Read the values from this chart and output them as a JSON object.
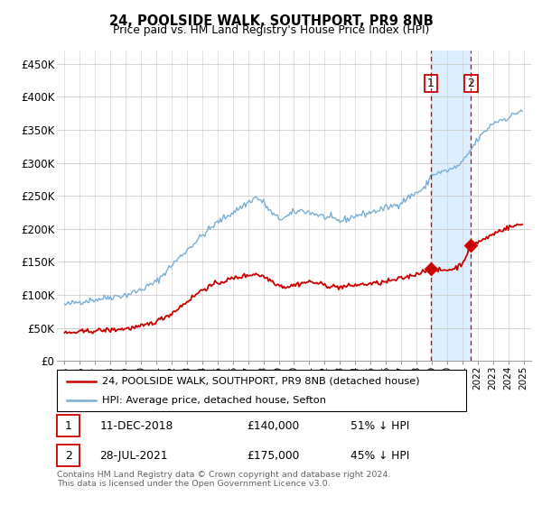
{
  "title": "24, POOLSIDE WALK, SOUTHPORT, PR9 8NB",
  "subtitle": "Price paid vs. HM Land Registry's House Price Index (HPI)",
  "footnote": "Contains HM Land Registry data © Crown copyright and database right 2024.\nThis data is licensed under the Open Government Licence v3.0.",
  "legend_entries": [
    "24, POOLSIDE WALK, SOUTHPORT, PR9 8NB (detached house)",
    "HPI: Average price, detached house, Sefton"
  ],
  "sales": [
    {
      "label": "1",
      "date": "11-DEC-2018",
      "price": 140000,
      "pct": "51% ↓ HPI"
    },
    {
      "label": "2",
      "date": "28-JUL-2021",
      "price": 175000,
      "pct": "45% ↓ HPI"
    }
  ],
  "sale1_x": 2018.94,
  "sale2_x": 2021.57,
  "sale1_y": 140000,
  "sale2_y": 175000,
  "hpi_color": "#7bafd4",
  "price_color": "#cc0000",
  "vline_color": "#cc0000",
  "highlight_color": "#ddeeff",
  "ylim": [
    0,
    470000
  ],
  "yticks": [
    0,
    50000,
    100000,
    150000,
    200000,
    250000,
    300000,
    350000,
    400000,
    450000
  ],
  "ytick_labels": [
    "£0",
    "£50K",
    "£100K",
    "£150K",
    "£200K",
    "£250K",
    "£300K",
    "£350K",
    "£400K",
    "£450K"
  ],
  "xlim_start": 1994.5,
  "xlim_end": 2025.5,
  "hpi_keypoints": [
    [
      1995.0,
      85000
    ],
    [
      1996.0,
      90000
    ],
    [
      1997.0,
      93000
    ],
    [
      1998.0,
      97000
    ],
    [
      1999.0,
      100000
    ],
    [
      2000.0,
      108000
    ],
    [
      2001.0,
      120000
    ],
    [
      2002.0,
      145000
    ],
    [
      2003.0,
      168000
    ],
    [
      2004.0,
      190000
    ],
    [
      2005.0,
      210000
    ],
    [
      2006.0,
      225000
    ],
    [
      2007.0,
      240000
    ],
    [
      2007.5,
      248000
    ],
    [
      2008.0,
      240000
    ],
    [
      2008.5,
      225000
    ],
    [
      2009.0,
      215000
    ],
    [
      2009.5,
      218000
    ],
    [
      2010.0,
      225000
    ],
    [
      2010.5,
      228000
    ],
    [
      2011.0,
      225000
    ],
    [
      2011.5,
      222000
    ],
    [
      2012.0,
      218000
    ],
    [
      2012.5,
      215000
    ],
    [
      2013.0,
      212000
    ],
    [
      2013.5,
      215000
    ],
    [
      2014.0,
      220000
    ],
    [
      2014.5,
      222000
    ],
    [
      2015.0,
      225000
    ],
    [
      2015.5,
      228000
    ],
    [
      2016.0,
      232000
    ],
    [
      2016.5,
      235000
    ],
    [
      2017.0,
      240000
    ],
    [
      2017.5,
      248000
    ],
    [
      2018.0,
      255000
    ],
    [
      2018.5,
      260000
    ],
    [
      2018.94,
      280000
    ],
    [
      2019.0,
      282000
    ],
    [
      2019.5,
      285000
    ],
    [
      2020.0,
      288000
    ],
    [
      2020.5,
      292000
    ],
    [
      2021.0,
      300000
    ],
    [
      2021.57,
      320000
    ],
    [
      2022.0,
      335000
    ],
    [
      2022.5,
      348000
    ],
    [
      2023.0,
      360000
    ],
    [
      2023.5,
      365000
    ],
    [
      2024.0,
      368000
    ],
    [
      2024.5,
      375000
    ],
    [
      2024.9,
      380000
    ]
  ],
  "price_keypoints": [
    [
      1995.0,
      42000
    ],
    [
      1996.0,
      44000
    ],
    [
      1997.0,
      46000
    ],
    [
      1998.0,
      47000
    ],
    [
      1999.0,
      49000
    ],
    [
      2000.0,
      52000
    ],
    [
      2001.0,
      60000
    ],
    [
      2002.0,
      72000
    ],
    [
      2003.0,
      90000
    ],
    [
      2004.0,
      108000
    ],
    [
      2005.0,
      118000
    ],
    [
      2006.0,
      125000
    ],
    [
      2007.0,
      130000
    ],
    [
      2007.5,
      132000
    ],
    [
      2008.0,
      128000
    ],
    [
      2008.5,
      122000
    ],
    [
      2009.0,
      115000
    ],
    [
      2009.5,
      112000
    ],
    [
      2010.0,
      115000
    ],
    [
      2010.5,
      118000
    ],
    [
      2011.0,
      120000
    ],
    [
      2011.5,
      118000
    ],
    [
      2012.0,
      115000
    ],
    [
      2012.5,
      113000
    ],
    [
      2013.0,
      112000
    ],
    [
      2013.5,
      113000
    ],
    [
      2014.0,
      115000
    ],
    [
      2014.5,
      116000
    ],
    [
      2015.0,
      117000
    ],
    [
      2015.5,
      118000
    ],
    [
      2016.0,
      120000
    ],
    [
      2016.5,
      122000
    ],
    [
      2017.0,
      125000
    ],
    [
      2017.5,
      128000
    ],
    [
      2018.0,
      132000
    ],
    [
      2018.5,
      136000
    ],
    [
      2018.94,
      140000
    ],
    [
      2019.0,
      138000
    ],
    [
      2019.5,
      137000
    ],
    [
      2020.0,
      138000
    ],
    [
      2020.5,
      140000
    ],
    [
      2021.0,
      148000
    ],
    [
      2021.57,
      175000
    ],
    [
      2022.0,
      180000
    ],
    [
      2022.5,
      185000
    ],
    [
      2023.0,
      192000
    ],
    [
      2023.5,
      198000
    ],
    [
      2024.0,
      202000
    ],
    [
      2024.5,
      205000
    ],
    [
      2024.9,
      207000
    ]
  ]
}
